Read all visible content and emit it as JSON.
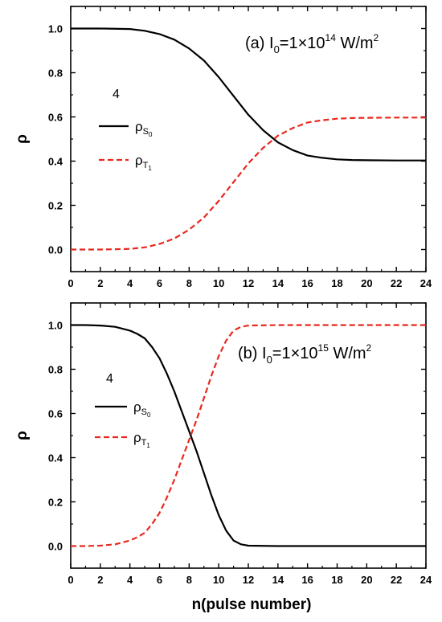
{
  "figure": {
    "xlabel": "n(pulse number)"
  },
  "chart_data": [
    {
      "type": "line",
      "panel": "a",
      "annotation": {
        "prefix": "(a) I",
        "sub": "0",
        "mid": "=1×10",
        "sup": "14",
        "unit": " W/m",
        "unit_sup": "2"
      },
      "ylabel": "ρ",
      "xlabel": "",
      "xlim": [
        0,
        24
      ],
      "ylim": [
        -0.1,
        1.1
      ],
      "xticks": [
        0,
        2,
        4,
        6,
        8,
        10,
        12,
        14,
        16,
        18,
        20,
        22,
        24
      ],
      "yticks": [
        "0.0",
        "0.2",
        "0.4",
        "0.6",
        "0.8",
        "1.0"
      ],
      "legend": {
        "title": "4",
        "placement": "center-left"
      },
      "series": [
        {
          "name": "ρS0",
          "legend_main": "ρ",
          "legend_sub": "S",
          "legend_subsub": "0",
          "style": "solid",
          "color": "#000000",
          "x": [
            0,
            2,
            4,
            5,
            6,
            7,
            8,
            9,
            10,
            11,
            12,
            13,
            14,
            15,
            16,
            17,
            18,
            19,
            20,
            22,
            24
          ],
          "values": [
            1.0,
            1.0,
            0.998,
            0.99,
            0.975,
            0.95,
            0.91,
            0.855,
            0.78,
            0.695,
            0.61,
            0.54,
            0.485,
            0.45,
            0.425,
            0.415,
            0.408,
            0.405,
            0.404,
            0.403,
            0.403
          ]
        },
        {
          "name": "ρT1",
          "legend_main": "ρ",
          "legend_sub": "T",
          "legend_subsub": "1",
          "style": "dashed",
          "color": "#e8281e",
          "x": [
            0,
            2,
            4,
            5,
            6,
            7,
            8,
            9,
            10,
            11,
            12,
            13,
            14,
            15,
            16,
            17,
            18,
            19,
            20,
            22,
            24
          ],
          "values": [
            0.0,
            0.0,
            0.003,
            0.01,
            0.025,
            0.05,
            0.09,
            0.145,
            0.22,
            0.305,
            0.39,
            0.46,
            0.515,
            0.55,
            0.575,
            0.585,
            0.592,
            0.595,
            0.596,
            0.597,
            0.597
          ]
        }
      ]
    },
    {
      "type": "line",
      "panel": "b",
      "annotation": {
        "prefix": "(b) I",
        "sub": "0",
        "mid": "=1×10",
        "sup": "15",
        "unit": " W/m",
        "unit_sup": "2"
      },
      "ylabel": "ρ",
      "xlabel": "n(pulse number)",
      "xlim": [
        0,
        24
      ],
      "ylim": [
        -0.1,
        1.1
      ],
      "xticks": [
        0,
        2,
        4,
        6,
        8,
        10,
        12,
        14,
        16,
        18,
        20,
        22,
        24
      ],
      "yticks": [
        "0.0",
        "0.2",
        "0.4",
        "0.6",
        "0.8",
        "1.0"
      ],
      "legend": {
        "title": "4",
        "placement": "center-left"
      },
      "series": [
        {
          "name": "ρS0",
          "legend_main": "ρ",
          "legend_sub": "S",
          "legend_subsub": "0",
          "style": "solid",
          "color": "#000000",
          "x": [
            0,
            1,
            2,
            3,
            4,
            4.5,
            5,
            5.5,
            6,
            6.5,
            7,
            7.5,
            8,
            8.5,
            9,
            9.5,
            10,
            10.5,
            11,
            11.5,
            12,
            14,
            16,
            18,
            20,
            22,
            24
          ],
          "values": [
            1.0,
            1.0,
            0.998,
            0.992,
            0.975,
            0.96,
            0.94,
            0.9,
            0.85,
            0.78,
            0.7,
            0.61,
            0.52,
            0.43,
            0.33,
            0.23,
            0.14,
            0.07,
            0.025,
            0.008,
            0.002,
            0.0,
            0.0,
            0.0,
            0.0,
            0.0,
            0.0
          ]
        },
        {
          "name": "ρT1",
          "legend_main": "ρ",
          "legend_sub": "T",
          "legend_subsub": "1",
          "style": "dashed",
          "color": "#e8281e",
          "x": [
            0,
            1,
            2,
            3,
            4,
            4.5,
            5,
            5.5,
            6,
            6.5,
            7,
            7.5,
            8,
            8.5,
            9,
            9.5,
            10,
            10.5,
            11,
            11.5,
            12,
            14,
            16,
            18,
            20,
            22,
            24
          ],
          "values": [
            0.0,
            0.0,
            0.002,
            0.008,
            0.025,
            0.04,
            0.06,
            0.1,
            0.15,
            0.22,
            0.3,
            0.39,
            0.48,
            0.57,
            0.67,
            0.77,
            0.86,
            0.93,
            0.975,
            0.992,
            0.998,
            1.0,
            1.0,
            1.0,
            1.0,
            1.0,
            1.0
          ]
        }
      ]
    }
  ]
}
